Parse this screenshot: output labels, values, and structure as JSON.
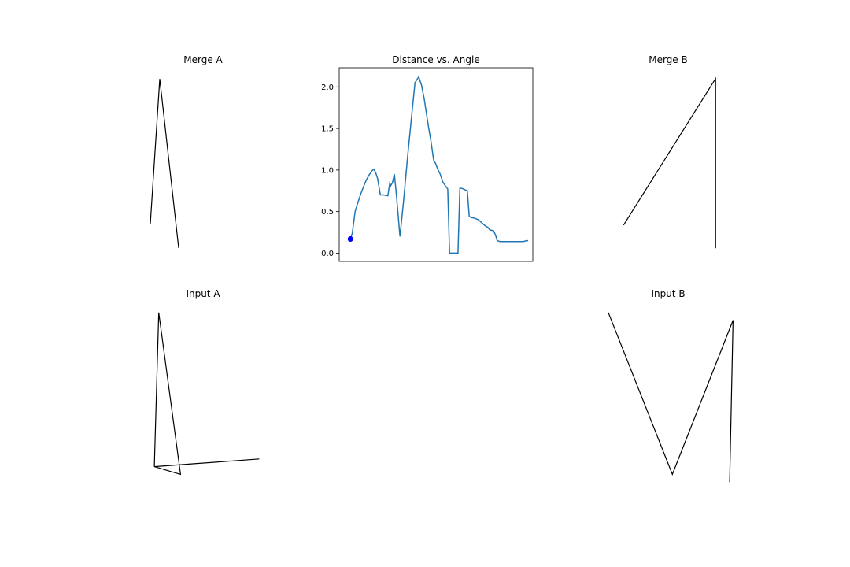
{
  "chart_data": [
    {
      "id": "merge_a",
      "type": "line",
      "title": "Merge A",
      "axes_visible": false,
      "series": [
        {
          "color": "#000000",
          "x": [
            -0.05,
            0.05,
            0.25
          ],
          "y": [
            0.1,
            1.0,
            -0.05
          ]
        }
      ],
      "xlim": [
        -0.1,
        1.15
      ],
      "ylim": [
        -0.1,
        1.05
      ]
    },
    {
      "id": "distance_vs_angle",
      "type": "line",
      "title": "Distance vs. Angle",
      "xlim": [
        -7,
        200
      ],
      "ylim": [
        -0.1,
        2.23
      ],
      "xticks_visible": false,
      "yticks": [
        "0.0",
        "0.5",
        "1.0",
        "1.5",
        "2.0"
      ],
      "ytick_values": [
        0,
        0.5,
        1.0,
        1.5,
        2.0
      ],
      "grid": false,
      "series": [
        {
          "color": "#1f77b4",
          "x": [
            5,
            7,
            10,
            13,
            16,
            19,
            22,
            25,
            28,
            30,
            32,
            34,
            37,
            40,
            45,
            47,
            48,
            50,
            52,
            54,
            58,
            62,
            66,
            70,
            74,
            78,
            81,
            84,
            86,
            88,
            91,
            94,
            96,
            98,
            101,
            104,
            109,
            111,
            113,
            116,
            120,
            122,
            124,
            130,
            132,
            134,
            138,
            142,
            145,
            147,
            149,
            152,
            154,
            158,
            160,
            162,
            165,
            169,
            173,
            177,
            181,
            184,
            188,
            190,
            193,
            195
          ],
          "y": [
            0.17,
            0.24,
            0.5,
            0.61,
            0.71,
            0.8,
            0.88,
            0.94,
            0.99,
            1.01,
            0.97,
            0.9,
            0.7,
            0.7,
            0.69,
            0.84,
            0.81,
            0.85,
            0.95,
            0.72,
            0.2,
            0.65,
            1.15,
            1.6,
            2.05,
            2.12,
            2.02,
            1.85,
            1.7,
            1.55,
            1.35,
            1.12,
            1.08,
            1.02,
            0.95,
            0.85,
            0.77,
            0.0,
            0.0,
            0.0,
            0.0,
            0.78,
            0.78,
            0.75,
            0.44,
            0.43,
            0.42,
            0.4,
            0.37,
            0.35,
            0.33,
            0.31,
            0.28,
            0.27,
            0.22,
            0.15,
            0.14,
            0.14,
            0.14,
            0.14,
            0.14,
            0.14,
            0.14,
            0.14,
            0.15,
            0.15
          ]
        }
      ],
      "marker": {
        "color": "#0000ff",
        "x": 5,
        "y": 0.17
      }
    },
    {
      "id": "merge_b",
      "type": "line",
      "title": "Merge B",
      "axes_visible": false,
      "series": [
        {
          "color": "#000000",
          "x": [
            -0.1,
            0.85,
            0.85
          ],
          "y": [
            0.05,
            1.0,
            -0.1
          ]
        }
      ],
      "xlim": [
        -0.2,
        1.1
      ],
      "ylim": [
        -0.15,
        1.05
      ]
    },
    {
      "id": "input_a",
      "type": "line",
      "title": "Input A",
      "axes_visible": false,
      "series": [
        {
          "color": "#000000",
          "x": [
            0.0,
            0.05,
            0.3,
            0.0,
            1.2
          ],
          "y": [
            0.0,
            1.0,
            -0.05,
            0.0,
            0.05
          ]
        }
      ],
      "xlim": [
        -0.1,
        1.25
      ],
      "ylim": [
        -0.15,
        1.05
      ]
    },
    {
      "id": "input_b",
      "type": "line",
      "title": "Input B",
      "axes_visible": false,
      "series": [
        {
          "color": "#000000",
          "x": [
            -0.95,
            0.0,
            0.9,
            0.85
          ],
          "y": [
            1.0,
            -0.05,
            0.95,
            -0.1
          ]
        }
      ],
      "xlim": [
        -1.1,
        1.0
      ],
      "ylim": [
        -0.15,
        1.05
      ]
    }
  ]
}
